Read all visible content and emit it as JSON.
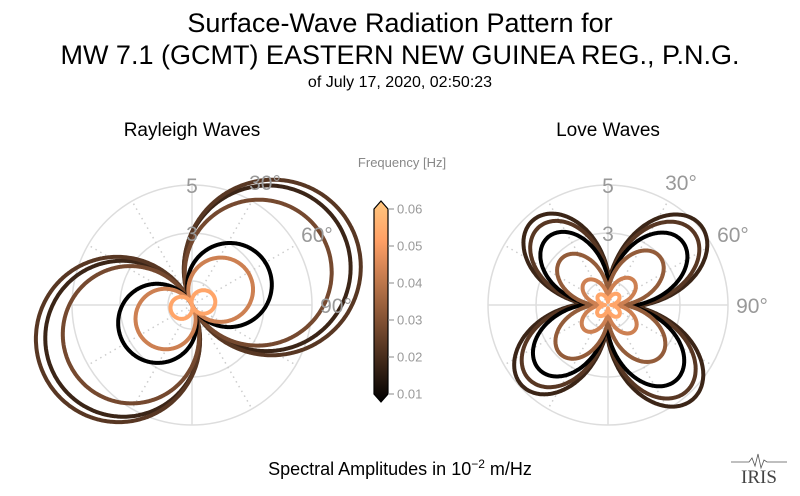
{
  "title": {
    "line1": "Surface-Wave Radiation Pattern for",
    "line2": "MW 7.1 (GCMT) EASTERN NEW GUINEA REG., P.N.G.",
    "line3": "of July 17, 2020, 02:50:23"
  },
  "xlabel": {
    "prefix": "Spectral Amplitudes in ",
    "base": "10",
    "exponent": "−2",
    "unit": " m/Hz"
  },
  "logo": "IRIS",
  "colors": {
    "grid": "#dddddd",
    "tick_text": "#999999",
    "colormap": "copper",
    "colormap_low": "#000000",
    "colormap_high": "#ffc77f"
  },
  "chart_data": [
    {
      "type": "polar-line",
      "title": "Rayleigh Waves",
      "radial_ticks": [
        "3",
        "5"
      ],
      "radial_range": [
        0,
        5
      ],
      "angle_ticks": [
        "30°",
        "60°",
        "90°"
      ],
      "angle_direction": "clockwise-from-north",
      "series": [
        {
          "frequency": 0.02,
          "amplitude": 6.7,
          "lobe_azimuth_deg": 64,
          "pattern": "two-lobe"
        },
        {
          "frequency": 0.025,
          "amplitude": 7.1,
          "lobe_azimuth_deg": 65,
          "pattern": "two-lobe"
        },
        {
          "frequency": 0.03,
          "amplitude": 5.9,
          "lobe_azimuth_deg": 64,
          "pattern": "two-lobe"
        },
        {
          "frequency": 0.01,
          "amplitude": 3.4,
          "lobe_azimuth_deg": 62,
          "pattern": "two-lobe"
        },
        {
          "frequency": 0.045,
          "amplitude": 2.6,
          "lobe_azimuth_deg": 62,
          "pattern": "two-lobe"
        },
        {
          "frequency": 0.055,
          "amplitude": 0.95,
          "lobe_azimuth_deg": 75,
          "pattern": "two-lobe"
        }
      ]
    },
    {
      "type": "polar-line",
      "title": "Love Waves",
      "radial_ticks": [
        "3",
        "5"
      ],
      "radial_range": [
        0,
        5
      ],
      "angle_ticks": [
        "30°",
        "60°",
        "90°"
      ],
      "angle_direction": "clockwise-from-north",
      "series": [
        {
          "frequency": 0.02,
          "amplitude": 5.0,
          "lobe_azimuth_deg": -42,
          "pattern": "four-lobe"
        },
        {
          "frequency": 0.025,
          "amplitude": 4.6,
          "lobe_azimuth_deg": -42,
          "pattern": "four-lobe"
        },
        {
          "frequency": 0.01,
          "amplitude": 4.0,
          "lobe_azimuth_deg": -42,
          "pattern": "four-lobe"
        },
        {
          "frequency": 0.035,
          "amplitude": 2.9,
          "lobe_azimuth_deg": -45,
          "pattern": "four-lobe"
        },
        {
          "frequency": 0.045,
          "amplitude": 1.45,
          "lobe_azimuth_deg": -45,
          "pattern": "four-lobe"
        },
        {
          "frequency": 0.055,
          "amplitude": 0.6,
          "lobe_azimuth_deg": -45,
          "pattern": "four-lobe"
        }
      ]
    },
    {
      "type": "colorbar",
      "label": "Frequency [Hz]",
      "ticks": [
        "0.01",
        "0.02",
        "0.03",
        "0.04",
        "0.05",
        "0.06"
      ],
      "range": [
        0.01,
        0.06
      ],
      "extend": "both"
    }
  ]
}
